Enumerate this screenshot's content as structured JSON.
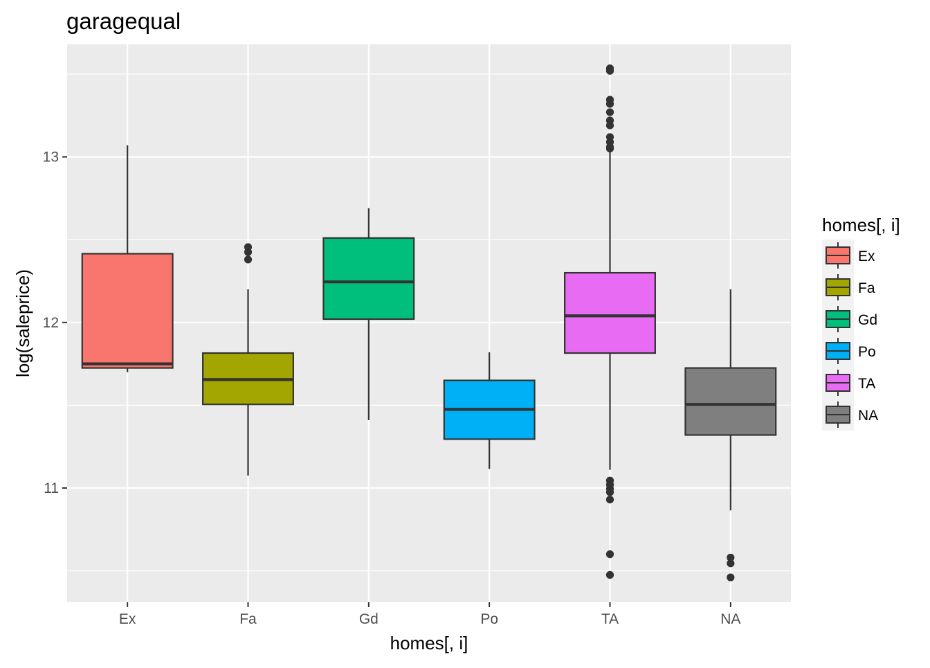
{
  "chart_data": {
    "type": "box",
    "title": "garagequal",
    "xlabel": "homes[, i]",
    "ylabel": "log(saleprice)",
    "ylim": [
      10.31,
      13.68
    ],
    "y_ticks": [
      11,
      12,
      13
    ],
    "grid": true,
    "legend": {
      "title": "homes[, i]",
      "position": "right"
    },
    "categories": [
      "Ex",
      "Fa",
      "Gd",
      "Po",
      "TA",
      "NA"
    ],
    "series": [
      {
        "name": "Ex",
        "color": "#F8766D",
        "min": 11.7,
        "q1": 11.725,
        "median": 11.75,
        "q3": 12.415,
        "max": 13.07,
        "outliers": []
      },
      {
        "name": "Fa",
        "color": "#A3A500",
        "min": 11.075,
        "q1": 11.505,
        "median": 11.655,
        "q3": 11.815,
        "max": 12.2,
        "outliers": [
          12.38,
          12.425,
          12.455
        ]
      },
      {
        "name": "Gd",
        "color": "#00BF7D",
        "min": 11.41,
        "q1": 12.02,
        "median": 12.245,
        "q3": 12.51,
        "max": 12.69,
        "outliers": []
      },
      {
        "name": "Po",
        "color": "#00B0F6",
        "min": 11.115,
        "q1": 11.295,
        "median": 11.475,
        "q3": 11.65,
        "max": 11.82,
        "outliers": []
      },
      {
        "name": "TA",
        "color": "#E76BF3",
        "min": 11.11,
        "q1": 11.815,
        "median": 12.04,
        "q3": 12.3,
        "max": 13.03,
        "outliers": [
          13.535,
          13.52,
          13.345,
          13.32,
          13.27,
          13.22,
          13.19,
          13.12,
          13.09,
          13.06,
          13.05,
          11.045,
          11.02,
          10.995,
          10.975,
          10.93,
          10.6,
          10.475
        ]
      },
      {
        "name": "NA",
        "color": "#7F7F7F",
        "min": 10.865,
        "q1": 11.32,
        "median": 11.505,
        "q3": 11.725,
        "max": 12.2,
        "outliers": [
          10.58,
          10.545,
          10.46
        ]
      }
    ]
  }
}
